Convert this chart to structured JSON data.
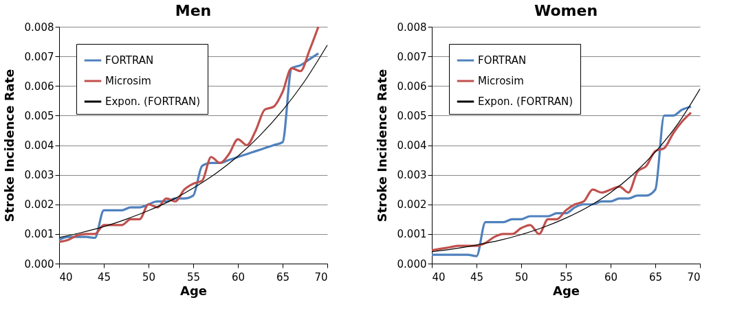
{
  "chart_data": [
    {
      "type": "line",
      "title": "Men",
      "xlabel": "Age",
      "ylabel": "Stroke Incidence Rate",
      "x": [
        40,
        41,
        42,
        43,
        44,
        45,
        46,
        47,
        48,
        49,
        50,
        51,
        52,
        53,
        54,
        55,
        56,
        57,
        58,
        59,
        60,
        61,
        62,
        63,
        64,
        65,
        66,
        67,
        68,
        69
      ],
      "series": [
        {
          "name": "FORTRAN",
          "color": "#4f81bd",
          "values": [
            0.0008,
            0.0009,
            0.0009,
            0.0009,
            0.00087,
            0.0018,
            0.0018,
            0.0018,
            0.0019,
            0.0019,
            0.002,
            0.0021,
            0.0021,
            0.0022,
            0.0022,
            0.0023,
            0.0033,
            0.0034,
            0.0034,
            0.0035,
            0.0036,
            0.0037,
            0.0038,
            0.0039,
            0.004,
            0.0041,
            0.0066,
            0.0067,
            0.0069,
            0.0071
          ]
        },
        {
          "name": "Microsim",
          "color": "#c0504d",
          "values": [
            0.00073,
            0.0008,
            0.00095,
            0.001,
            0.001,
            0.0013,
            0.0013,
            0.0013,
            0.0015,
            0.0015,
            0.002,
            0.0019,
            0.0022,
            0.0021,
            0.0025,
            0.0027,
            0.0028,
            0.0036,
            0.0034,
            0.0037,
            0.0042,
            0.004,
            0.0045,
            0.0052,
            0.0053,
            0.0058,
            0.0066,
            0.0065,
            0.0072,
            0.008
          ]
        },
        {
          "name": "Expon. (FORTRAN)",
          "color": "#000000",
          "type": "line",
          "x": [
            40,
            42.5,
            45,
            47.5,
            50,
            52.5,
            55,
            57.5,
            60,
            62.5,
            65,
            67.5,
            70
          ],
          "values": [
            0.00088,
            0.00105,
            0.00125,
            0.0015,
            0.00179,
            0.00213,
            0.00255,
            0.00304,
            0.00363,
            0.00434,
            0.00518,
            0.00618,
            0.00738
          ]
        }
      ],
      "xlim": [
        40,
        70
      ],
      "xticks": [
        40,
        45,
        50,
        55,
        60,
        65,
        70
      ],
      "ylim": [
        0,
        0.008
      ],
      "yticks": [
        {
          "value": 0,
          "label": "0.000"
        },
        {
          "value": 0.001,
          "label": "0.001"
        },
        {
          "value": 0.002,
          "label": "0.002"
        },
        {
          "value": 0.003,
          "label": "0.003"
        },
        {
          "value": 0.004,
          "label": "0.004"
        },
        {
          "value": 0.005,
          "label": "0.005"
        },
        {
          "value": 0.006,
          "label": "0.006"
        },
        {
          "value": 0.007,
          "label": "0.007"
        },
        {
          "value": 0.008,
          "label": "0.008"
        }
      ],
      "grid": "y",
      "legend": "top left"
    },
    {
      "type": "line",
      "title": "Women",
      "xlabel": "Age",
      "ylabel": "Stroke Incidence Rate",
      "x": [
        40,
        41,
        42,
        43,
        44,
        45,
        46,
        47,
        48,
        49,
        50,
        51,
        52,
        53,
        54,
        55,
        56,
        57,
        58,
        59,
        60,
        61,
        62,
        63,
        64,
        65,
        66,
        67,
        68,
        69
      ],
      "series": [
        {
          "name": "FORTRAN",
          "color": "#4f81bd",
          "values": [
            0.0003,
            0.0003,
            0.0003,
            0.0003,
            0.0003,
            0.00025,
            0.0014,
            0.0014,
            0.0014,
            0.0015,
            0.0015,
            0.0016,
            0.0016,
            0.0016,
            0.0017,
            0.0017,
            0.0019,
            0.002,
            0.002,
            0.0021,
            0.0021,
            0.0022,
            0.0022,
            0.0023,
            0.0023,
            0.0025,
            0.005,
            0.005,
            0.0052,
            0.0053
          ]
        },
        {
          "name": "Microsim",
          "color": "#c0504d",
          "values": [
            0.00045,
            0.0005,
            0.00055,
            0.0006,
            0.0006,
            0.0006,
            0.0007,
            0.0009,
            0.001,
            0.001,
            0.0012,
            0.0013,
            0.001,
            0.0015,
            0.0015,
            0.0018,
            0.002,
            0.0021,
            0.0025,
            0.0024,
            0.0025,
            0.0026,
            0.0024,
            0.0031,
            0.0033,
            0.0038,
            0.0039,
            0.0044,
            0.0048,
            0.0051
          ]
        },
        {
          "name": "Expon. (FORTRAN)",
          "color": "#000000",
          "type": "line",
          "x": [
            40,
            42.5,
            45,
            47.5,
            50,
            52.5,
            55,
            57.5,
            60,
            62.5,
            65,
            67.5,
            70
          ],
          "values": [
            0.0004,
            0.0005,
            0.00063,
            0.00078,
            0.00098,
            0.00123,
            0.00154,
            0.00192,
            0.0024,
            0.00301,
            0.00377,
            0.00471,
            0.0059
          ]
        }
      ],
      "xlim": [
        40,
        70
      ],
      "xticks": [
        40,
        45,
        50,
        55,
        60,
        65,
        70
      ],
      "ylim": [
        0,
        0.008
      ],
      "yticks": [
        {
          "value": 0,
          "label": "0.000"
        },
        {
          "value": 0.001,
          "label": "0.001"
        },
        {
          "value": 0.002,
          "label": "0.002"
        },
        {
          "value": 0.003,
          "label": "0.003"
        },
        {
          "value": 0.004,
          "label": "0.004"
        },
        {
          "value": 0.005,
          "label": "0.005"
        },
        {
          "value": 0.006,
          "label": "0.006"
        },
        {
          "value": 0.007,
          "label": "0.007"
        },
        {
          "value": 0.008,
          "label": "0.008"
        }
      ],
      "grid": "y",
      "legend": "top left"
    }
  ]
}
